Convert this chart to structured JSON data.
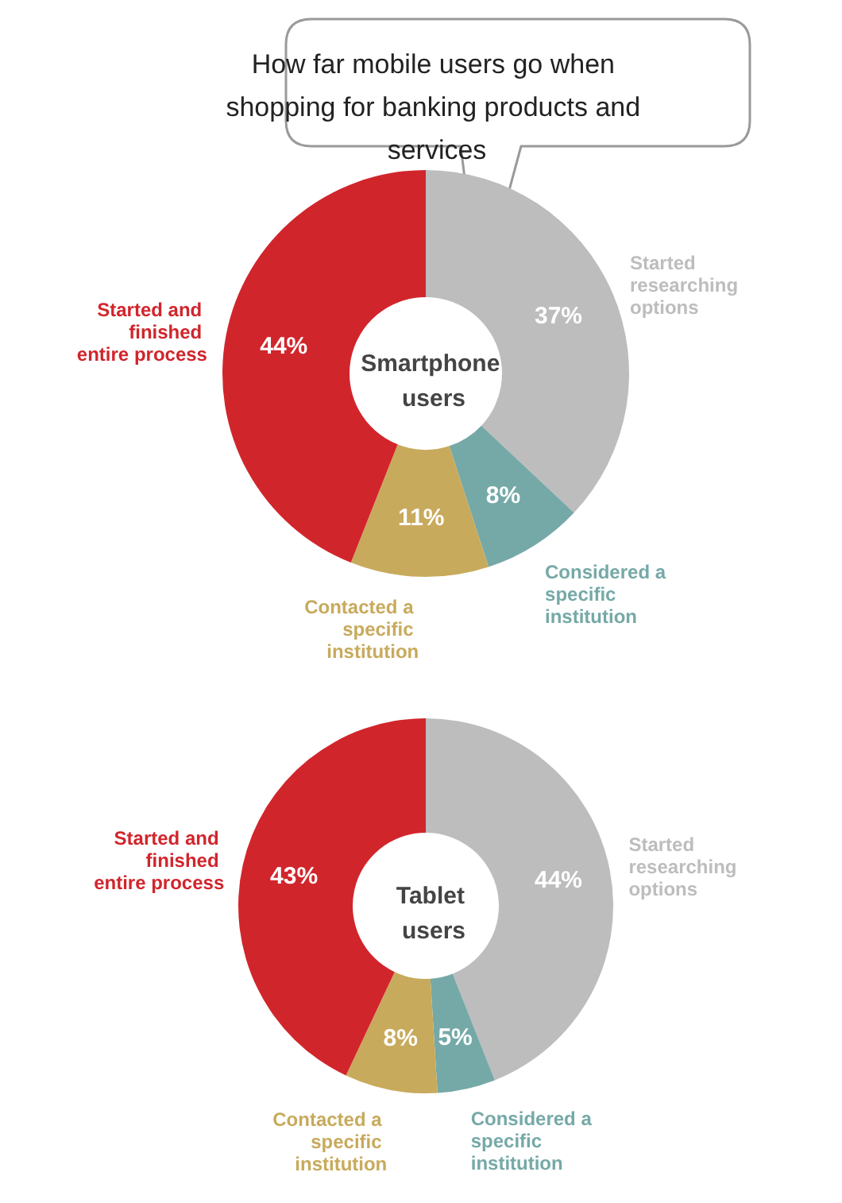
{
  "chart_data": [
    {
      "type": "donut",
      "title": "How far mobile users go when shopping for banking products and services",
      "subtitle": "Smartphone users",
      "categories": [
        "Started researching options",
        "Considered a specific institution",
        "Contacted a specific institution",
        "Started and finished entire process"
      ],
      "values": [
        37,
        8,
        11,
        44
      ],
      "value_labels": [
        "37%",
        "8%",
        "11%",
        "44%"
      ],
      "colors": [
        "#bdbdbd",
        "#75a9a7",
        "#c8aa5c",
        "#d1252c"
      ],
      "legend": false
    },
    {
      "type": "donut",
      "subtitle": "Tablet users",
      "categories": [
        "Started researching options",
        "Considered a specific institution",
        "Contacted a specific institution",
        "Started and finished entire process"
      ],
      "values": [
        44,
        5,
        8,
        43
      ],
      "value_labels": [
        "44%",
        "5%",
        "8%",
        "43%"
      ],
      "colors": [
        "#bdbdbd",
        "#75a9a7",
        "#c8aa5c",
        "#d1252c"
      ],
      "legend": false
    }
  ]
}
